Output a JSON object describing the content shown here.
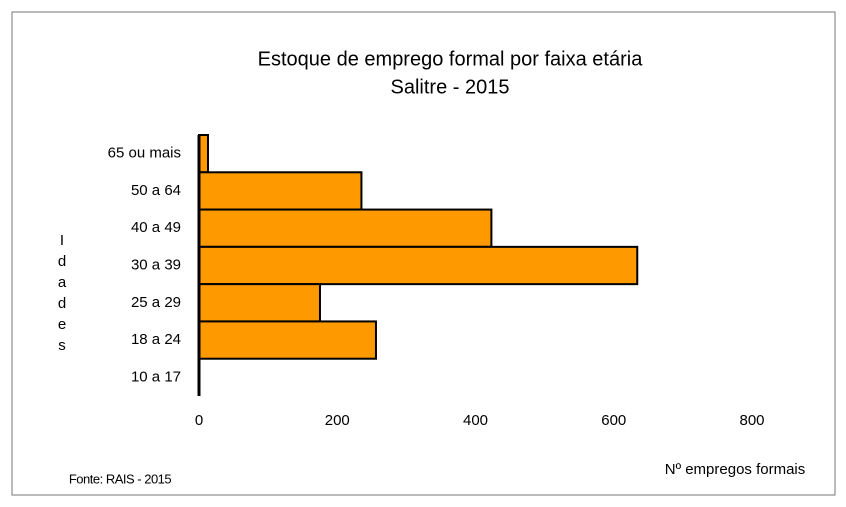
{
  "chart_data": {
    "type": "bar",
    "orientation": "horizontal",
    "title": "Estoque de emprego formal por faixa etária",
    "subtitle": "Salitre - 2015",
    "y_label": "Idades",
    "x_label": "Nº empregos formais",
    "source": "Fonte: RAIS - 2015",
    "categories": [
      "65 ou mais",
      "50 a 64",
      "40 a 49",
      "30 a 39",
      "25 a 29",
      "18 a 24",
      "10 a 17"
    ],
    "values": [
      13,
      235,
      423,
      634,
      175,
      256,
      0
    ],
    "color": "#ff9900",
    "xlim": [
      0,
      800
    ],
    "xticks": [
      0,
      200,
      400,
      600,
      800
    ],
    "grid": false
  }
}
